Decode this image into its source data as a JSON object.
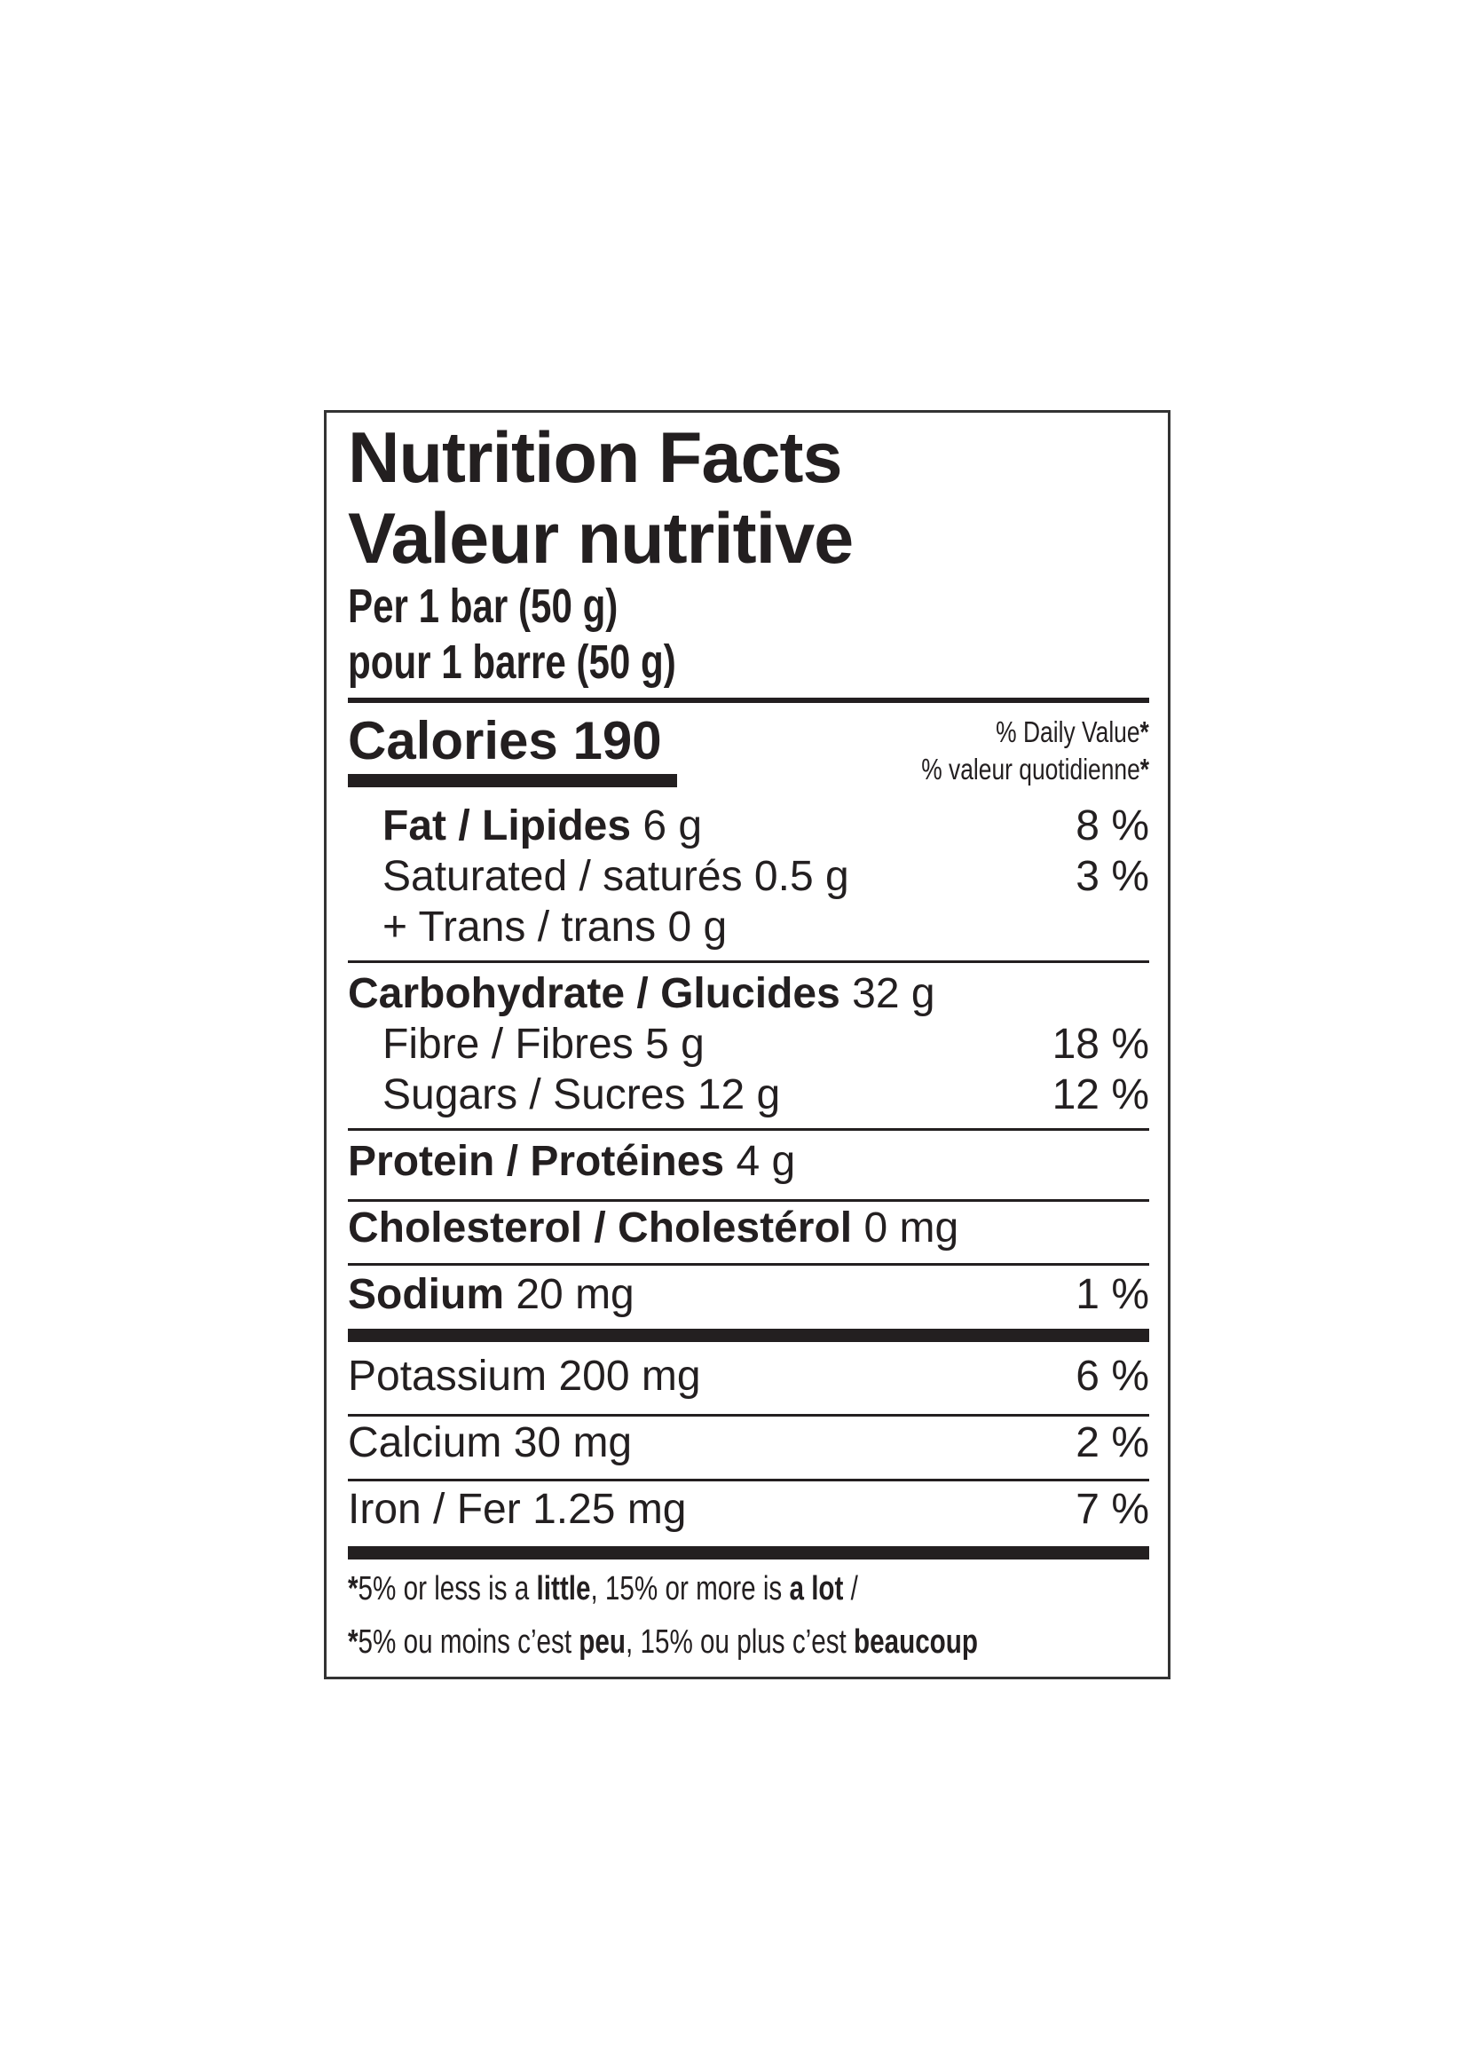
{
  "header": {
    "title_en": "Nutrition Facts",
    "title_fr": "Valeur nutritive",
    "serving_en": "Per 1 bar (50 g)",
    "serving_fr": "pour 1 barre (50 g)"
  },
  "calories": {
    "label": "Calories",
    "value": "190"
  },
  "daily_value": {
    "en": "% Daily Value",
    "fr": "% valeur quotidienne",
    "asterisk": "*"
  },
  "nutrients": [
    {
      "name": "Fat / Lipides",
      "amount": "6 g",
      "dv": "8 %"
    },
    {
      "name": "Saturated / saturés",
      "amount": "0.5 g",
      "dv": "3 %"
    },
    {
      "name": "+ Trans / trans",
      "amount": "0 g",
      "dv": ""
    },
    {
      "name": "Carbohydrate / Glucides",
      "amount": "32 g",
      "dv": ""
    },
    {
      "name": "Fibre / Fibres",
      "amount": "5 g",
      "dv": "18 %"
    },
    {
      "name": "Sugars / Sucres",
      "amount": "12 g",
      "dv": "12 %"
    },
    {
      "name": "Protein / Protéines",
      "amount": "4 g",
      "dv": ""
    },
    {
      "name": "Cholesterol / Cholestérol",
      "amount": "0 mg",
      "dv": ""
    },
    {
      "name": "Sodium",
      "amount": "20 mg",
      "dv": "1 %"
    },
    {
      "name": "Potassium",
      "amount": "200 mg",
      "dv": "6 %"
    },
    {
      "name": "Calcium",
      "amount": "30 mg",
      "dv": "2 %"
    },
    {
      "name": "Iron / Fer",
      "amount": "1.25 mg",
      "dv": "7 %"
    }
  ],
  "footnote": {
    "en": {
      "a": "5% or less is a ",
      "b": "little",
      "c": ", 15% or more is ",
      "d": "a lot",
      "e": " /"
    },
    "fr": {
      "a": "5% ou moins c’est ",
      "b": "peu",
      "c": ", 15% ou plus c’est ",
      "d": "beaucoup",
      "e": ""
    }
  }
}
